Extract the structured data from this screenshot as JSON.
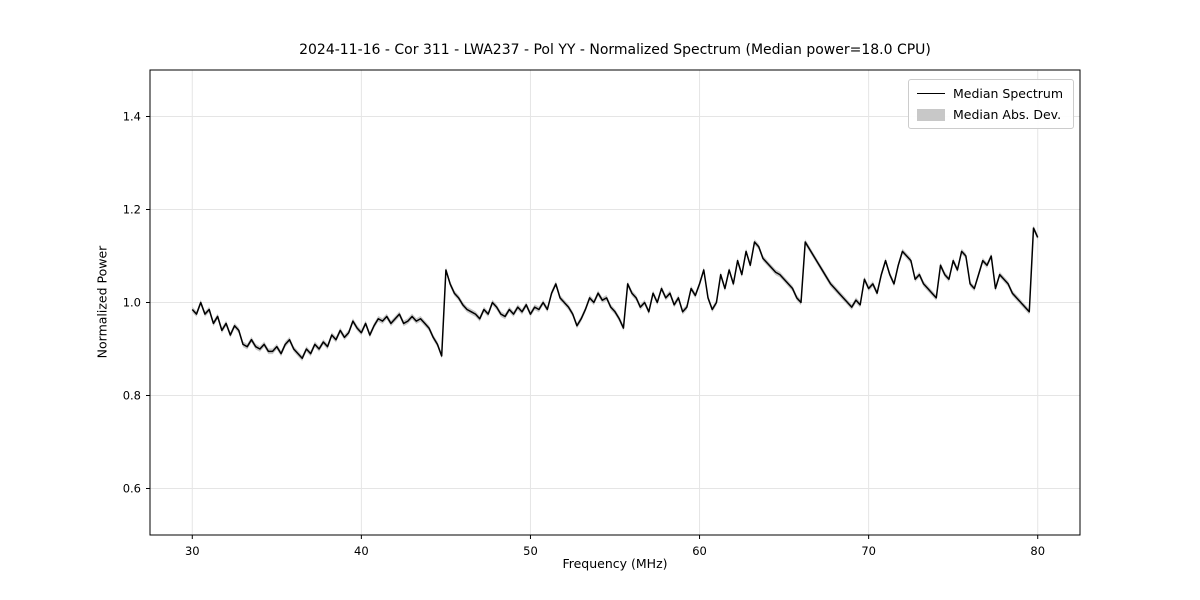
{
  "chart_data": {
    "type": "line",
    "title": "2024-11-16 - Cor 311 - LWA237 - Pol YY - Normalized Spectrum (Median power=18.0 CPU)",
    "xlabel": "Frequency (MHz)",
    "ylabel": "Normalized Power",
    "xlim": [
      27.5,
      82.5
    ],
    "ylim": [
      0.5,
      1.5
    ],
    "xticks": [
      30,
      40,
      50,
      60,
      70,
      80
    ],
    "xtick_labels": [
      "30",
      "40",
      "50",
      "60",
      "70",
      "80"
    ],
    "yticks": [
      0.6,
      0.8,
      1.0,
      1.2,
      1.4
    ],
    "ytick_labels": [
      "0.6",
      "0.8",
      "1.0",
      "1.2",
      "1.4"
    ],
    "grid": true,
    "legend": {
      "position": "upper right",
      "entries": [
        {
          "label": "Median Spectrum",
          "type": "line",
          "color": "#000000"
        },
        {
          "label": "Median Abs. Dev.",
          "type": "patch",
          "color": "#c8c8c8"
        }
      ]
    },
    "colors": {
      "line": "#000000",
      "band": "#c8c8c8",
      "grid": "#e5e5e5"
    },
    "mad": 0.006,
    "series": [
      {
        "name": "Median Spectrum",
        "x_start": 30.0,
        "x_step": 0.25,
        "y": [
          0.985,
          0.975,
          1.0,
          0.975,
          0.985,
          0.955,
          0.97,
          0.94,
          0.955,
          0.93,
          0.95,
          0.94,
          0.91,
          0.905,
          0.92,
          0.905,
          0.9,
          0.91,
          0.895,
          0.895,
          0.905,
          0.89,
          0.91,
          0.92,
          0.9,
          0.89,
          0.88,
          0.9,
          0.89,
          0.91,
          0.9,
          0.915,
          0.905,
          0.93,
          0.92,
          0.94,
          0.925,
          0.935,
          0.96,
          0.945,
          0.935,
          0.955,
          0.93,
          0.95,
          0.965,
          0.96,
          0.97,
          0.955,
          0.965,
          0.975,
          0.955,
          0.96,
          0.97,
          0.96,
          0.965,
          0.955,
          0.945,
          0.925,
          0.91,
          0.885,
          1.07,
          1.04,
          1.02,
          1.01,
          0.995,
          0.985,
          0.98,
          0.975,
          0.965,
          0.985,
          0.975,
          1.0,
          0.99,
          0.975,
          0.97,
          0.985,
          0.975,
          0.99,
          0.98,
          0.995,
          0.975,
          0.99,
          0.985,
          1.0,
          0.985,
          1.02,
          1.04,
          1.01,
          1.0,
          0.99,
          0.975,
          0.95,
          0.965,
          0.985,
          1.01,
          1.0,
          1.02,
          1.005,
          1.01,
          0.99,
          0.98,
          0.965,
          0.945,
          1.04,
          1.02,
          1.01,
          0.99,
          1.0,
          0.98,
          1.02,
          1.0,
          1.03,
          1.01,
          1.02,
          0.995,
          1.01,
          0.98,
          0.99,
          1.03,
          1.015,
          1.04,
          1.07,
          1.01,
          0.985,
          1.0,
          1.06,
          1.03,
          1.07,
          1.04,
          1.09,
          1.06,
          1.11,
          1.08,
          1.13,
          1.12,
          1.095,
          1.085,
          1.075,
          1.065,
          1.06,
          1.05,
          1.04,
          1.03,
          1.01,
          1.0,
          1.13,
          1.115,
          1.1,
          1.085,
          1.07,
          1.055,
          1.04,
          1.03,
          1.02,
          1.01,
          1.0,
          0.99,
          1.005,
          0.995,
          1.05,
          1.03,
          1.04,
          1.02,
          1.06,
          1.09,
          1.06,
          1.04,
          1.08,
          1.11,
          1.1,
          1.09,
          1.05,
          1.06,
          1.04,
          1.03,
          1.02,
          1.01,
          1.08,
          1.06,
          1.05,
          1.09,
          1.07,
          1.11,
          1.1,
          1.04,
          1.03,
          1.06,
          1.09,
          1.08,
          1.1,
          1.03,
          1.06,
          1.05,
          1.04,
          1.02,
          1.01,
          1.0,
          0.99,
          0.98,
          1.16,
          1.14
        ]
      }
    ]
  }
}
